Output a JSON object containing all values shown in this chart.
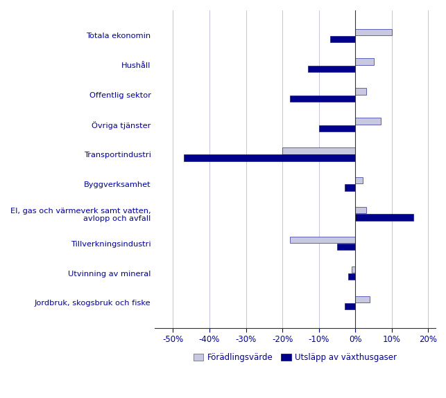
{
  "categories": [
    "Totala ekonomin",
    "Hushåll",
    "Offentlig sektor",
    "Övriga tjänster",
    "Transportindustri",
    "Byggverksamhet",
    "El, gas och värmeverk samt vatten,\navlopp och avfall",
    "Tillverkningsindustri",
    "Utvinning av mineral",
    "Jordbruk, skogsbruk och fiske"
  ],
  "foradlingsvarde": [
    10,
    5,
    3,
    7,
    -20,
    2,
    3,
    -18,
    -1,
    4
  ],
  "utslapp": [
    -7,
    -13,
    -18,
    -10,
    -47,
    -3,
    16,
    -5,
    -2,
    -3
  ],
  "color_foradling": "#c8c8e0",
  "color_utslapp": "#00008b",
  "label_foradling": "Förädlingsvärde",
  "label_utslapp": "Utsläpp av växthusgaser",
  "xlim": [
    -55,
    22
  ],
  "xticks": [
    -50,
    -40,
    -30,
    -20,
    -10,
    0,
    10,
    20
  ],
  "xtick_labels": [
    "-50%",
    "-40%",
    "-30%",
    "-20%",
    "-10%",
    "0%",
    "10%",
    "20%"
  ],
  "text_color": "#0000aa",
  "bar_height": 0.22,
  "bar_gap": 0.02,
  "figsize": [
    6.43,
    5.75
  ],
  "dpi": 100
}
